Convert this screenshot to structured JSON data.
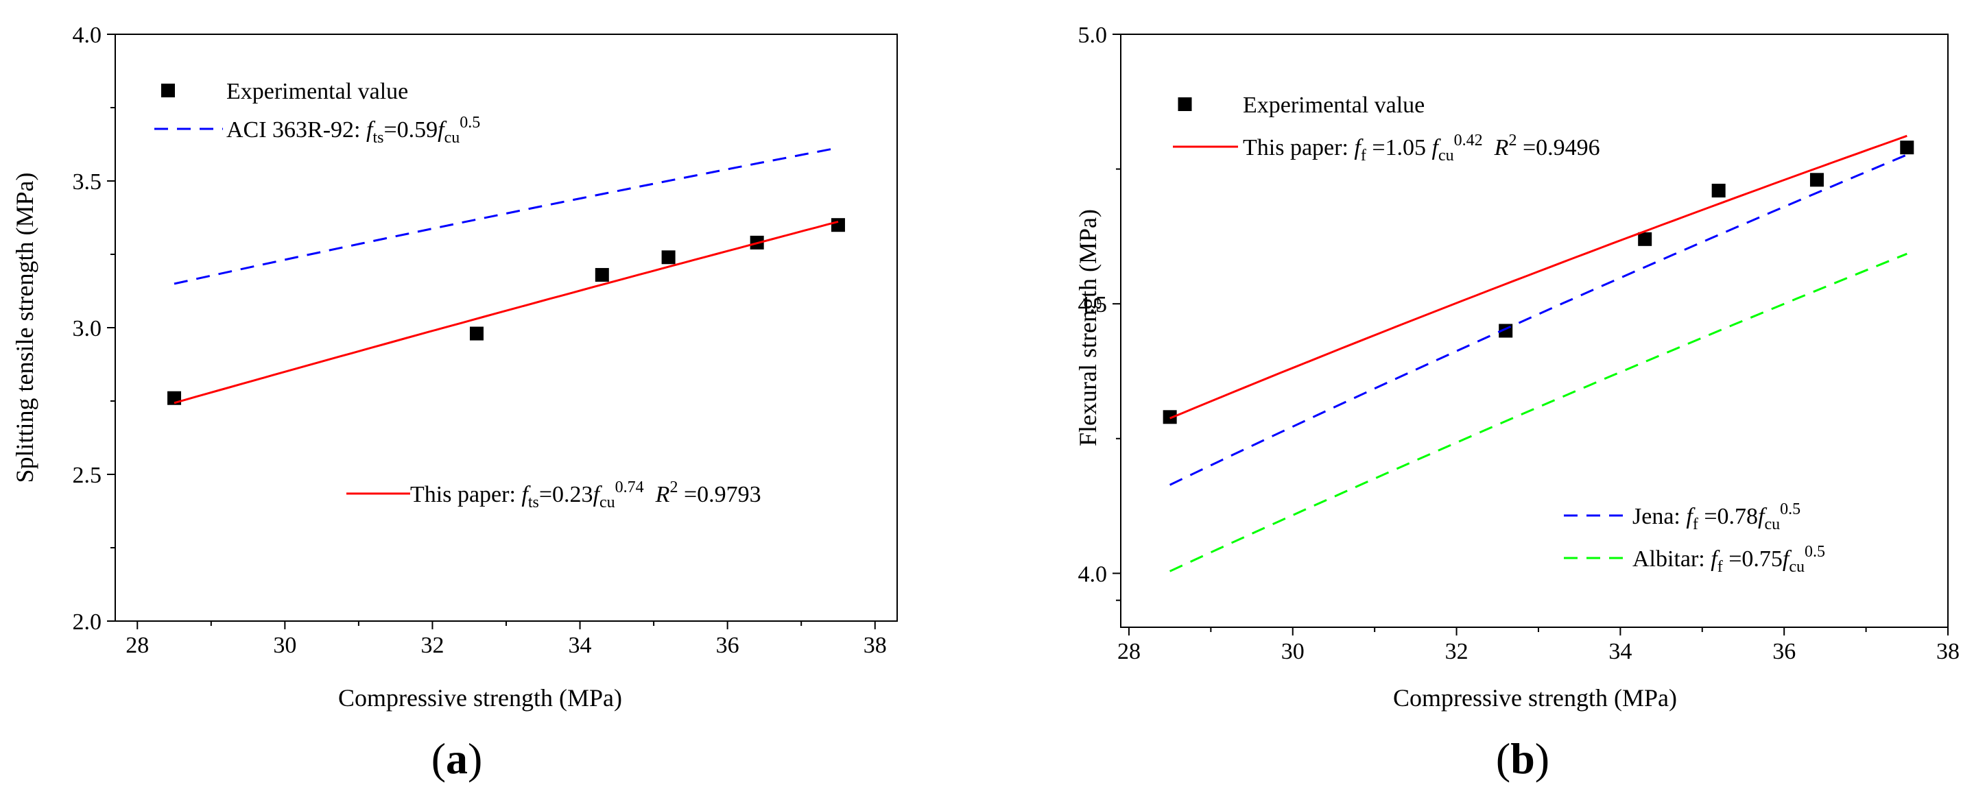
{
  "chart_data": [
    {
      "type": "scatter",
      "panel_label": "(a)",
      "panel_label_parts": [
        "(",
        "a",
        ")"
      ],
      "xlabel": "Compressive strength (MPa)",
      "ylabel": "Splitting tensile strength (MPa)",
      "xlim": [
        27.7,
        38.3
      ],
      "ylim": [
        2.0,
        4.0
      ],
      "xticks": [
        28,
        30,
        32,
        34,
        36,
        38
      ],
      "xtick_labels": [
        "28",
        "30",
        "32",
        "34",
        "36",
        "38"
      ],
      "yticks": [
        2.0,
        2.5,
        3.0,
        3.5,
        4.0
      ],
      "ytick_labels": [
        "2.0",
        "2.5",
        "3.0",
        "3.5",
        "4.0"
      ],
      "grid": false,
      "series": [
        {
          "name": "Experimental value",
          "kind": "points",
          "marker": "square",
          "color": "#000000",
          "x": [
            28.5,
            32.6,
            34.3,
            35.2,
            36.4,
            37.5
          ],
          "y": [
            2.76,
            2.98,
            3.18,
            3.24,
            3.29,
            3.35
          ],
          "legend": {
            "text": "Experimental value"
          }
        },
        {
          "name": "ACI 363R-92",
          "kind": "line",
          "dash": true,
          "color": "#0000ff",
          "formula": {
            "a": 0.59,
            "b": 0.5
          },
          "x_range": [
            28.5,
            37.5
          ],
          "legend": {
            "pre": "ACI 363R-92:  ",
            "f": "f",
            "fsub": "ts",
            "mid": "=0.59",
            "f2": "f",
            "f2sub": "cu",
            "exp": "0.5",
            "tail": ""
          }
        },
        {
          "name": "This paper",
          "kind": "line",
          "dash": false,
          "color": "#ff0000",
          "formula": {
            "a": 0.23,
            "b": 0.74
          },
          "x_range": [
            28.5,
            37.5
          ],
          "legend": {
            "pre": "This paper: ",
            "f": "f",
            "fsub": "ts",
            "mid": "=0.23",
            "f2": "f",
            "f2sub": "cu",
            "exp": "0.74",
            "r2": "R",
            "r2sup": "2",
            "r2val": " =0.9793"
          }
        }
      ]
    },
    {
      "type": "scatter",
      "panel_label": "(b)",
      "panel_label_parts": [
        "(",
        "b",
        ")"
      ],
      "xlabel": "Compressive strength (MPa)",
      "ylabel": "Flexural strength (MPa)",
      "xlim": [
        27.9,
        38.0
      ],
      "ylim": [
        3.9,
        5.0
      ],
      "xticks": [
        28,
        30,
        32,
        34,
        36,
        38
      ],
      "xtick_labels": [
        "28",
        "30",
        "32",
        "34",
        "36",
        "38"
      ],
      "yticks": [
        4.0,
        4.5,
        5.0
      ],
      "ytick_labels": [
        "4.0",
        "4.5",
        "5.0"
      ],
      "grid": false,
      "series": [
        {
          "name": "Experimental value",
          "kind": "points",
          "marker": "square",
          "color": "#000000",
          "x": [
            28.5,
            32.6,
            34.3,
            35.2,
            36.4,
            37.5
          ],
          "y": [
            4.29,
            4.45,
            4.62,
            4.71,
            4.73,
            4.79
          ],
          "legend": {
            "text": "Experimental value"
          }
        },
        {
          "name": "This paper",
          "kind": "line",
          "dash": false,
          "color": "#ff0000",
          "formula": {
            "a": 1.05,
            "b": 0.42
          },
          "x_range": [
            28.5,
            37.5
          ],
          "legend": {
            "pre": "This paper:  ",
            "f": "f",
            "fsub": "f",
            "mid": " =1.05 ",
            "f2": "f",
            "f2sub": "cu",
            "exp": "0.42",
            "r2": "R",
            "r2sup": "2",
            "r2val": " =0.9496"
          }
        },
        {
          "name": "Jena",
          "kind": "line",
          "dash": true,
          "color": "#0000ff",
          "formula": {
            "a": 0.78,
            "b": 0.5
          },
          "x_range": [
            28.5,
            37.5
          ],
          "legend": {
            "pre": "Jena:  ",
            "f": "f",
            "fsub": "f",
            "mid": " =0.78",
            "f2": "f",
            "f2sub": "cu",
            "exp": "0.5",
            "tail": ""
          }
        },
        {
          "name": "Albitar",
          "kind": "line",
          "dash": true,
          "color": "#00ff00",
          "formula": {
            "a": 0.75,
            "b": 0.5
          },
          "x_range": [
            28.5,
            37.5
          ],
          "legend": {
            "pre": "Albitar:  ",
            "f": "f",
            "fsub": "f",
            "mid": " =0.75",
            "f2": "f",
            "f2sub": "cu",
            "exp": "0.5",
            "tail": ""
          }
        }
      ]
    }
  ]
}
